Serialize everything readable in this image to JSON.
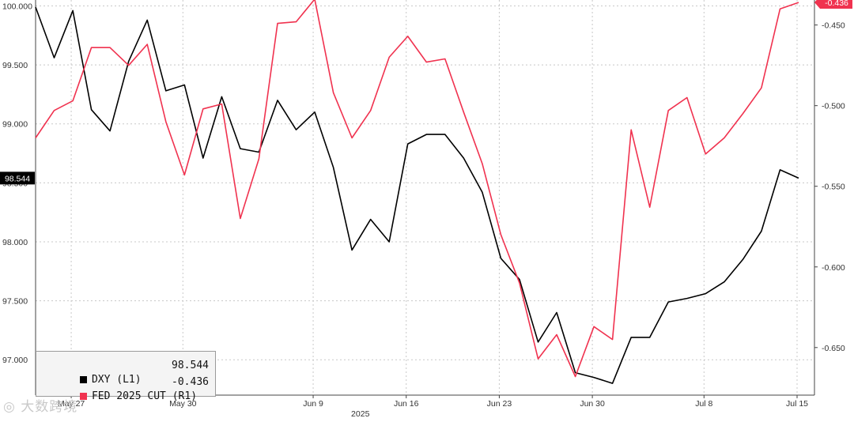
{
  "chart_data": {
    "type": "line",
    "x_tick_labels": [
      "May 27",
      "May 30",
      "Jun 9",
      "Jun 16",
      "Jun 23",
      "Jun 30",
      "Jul 8",
      "Jul 15"
    ],
    "x_year_label": "2025",
    "left_axis": {
      "ylim": [
        96.7,
        100.05
      ],
      "ticks": [
        97.0,
        97.5,
        98.0,
        98.5,
        99.0,
        99.5,
        100.0
      ],
      "tick_labels": [
        "97.000",
        "97.500",
        "98.000",
        "98.500",
        "99.000",
        "99.500",
        "100.000"
      ]
    },
    "right_axis": {
      "ylim": [
        -0.6795,
        -0.4345
      ],
      "ticks": [
        -0.65,
        -0.6,
        -0.55,
        -0.5,
        -0.45
      ],
      "tick_labels": [
        "-0.650",
        "-0.600",
        "-0.550",
        "-0.500",
        "-0.450"
      ]
    },
    "series": [
      {
        "name": "DXY",
        "axis": "left",
        "color": "#000000",
        "last_label": "98.544",
        "values": [
          99.99,
          99.56,
          99.96,
          99.12,
          98.94,
          99.53,
          99.88,
          99.28,
          99.33,
          98.71,
          99.23,
          98.79,
          98.76,
          99.2,
          98.95,
          99.1,
          98.63,
          97.93,
          98.19,
          98.0,
          98.83,
          98.91,
          98.91,
          98.71,
          98.42,
          97.86,
          97.68,
          97.15,
          97.4,
          96.89,
          96.85,
          96.8,
          97.19,
          97.19,
          97.49,
          97.52,
          97.56,
          97.66,
          97.85,
          98.09,
          98.61,
          98.54
        ]
      },
      {
        "name": "FED 2025 CUT",
        "axis": "right",
        "color": "#f0324f",
        "last_label": "-0.436",
        "values": [
          -0.52,
          -0.503,
          -0.497,
          -0.464,
          -0.464,
          -0.475,
          -0.462,
          -0.51,
          -0.543,
          -0.502,
          -0.499,
          -0.57,
          -0.533,
          -0.449,
          -0.448,
          -0.434,
          -0.492,
          -0.52,
          -0.503,
          -0.47,
          -0.457,
          -0.473,
          -0.471,
          -0.504,
          -0.536,
          -0.58,
          -0.61,
          -0.657,
          -0.642,
          -0.668,
          -0.637,
          -0.645,
          -0.515,
          -0.563,
          -0.503,
          -0.495,
          -0.53,
          -0.52,
          -0.505,
          -0.489,
          -0.44,
          -0.436
        ]
      }
    ],
    "legend": {
      "position": "bottom-left",
      "items": [
        {
          "name": "DXY (L1)",
          "value": "98.544",
          "color": "#000000"
        },
        {
          "name": "FED 2025 CUT (R1)",
          "value": "-0.436",
          "color": "#f0324f"
        }
      ]
    },
    "grid": true
  },
  "watermark": {
    "icon": "watermark-logo-icon",
    "text": "大数跨境"
  }
}
